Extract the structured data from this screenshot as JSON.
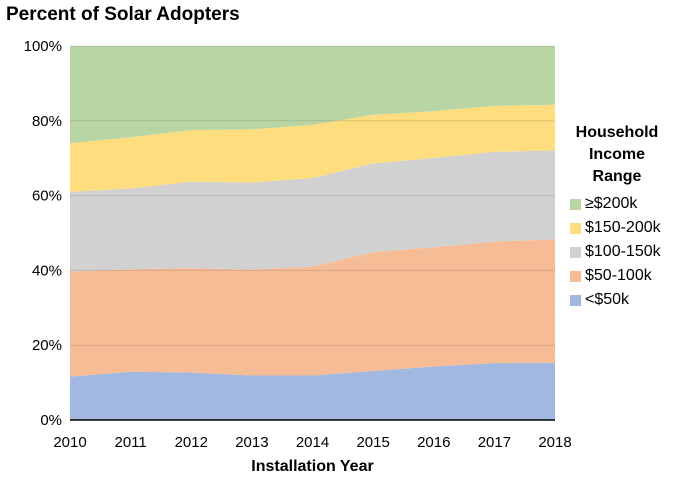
{
  "chart_data": {
    "type": "area",
    "stacked": true,
    "title": "Percent of Solar Adopters",
    "xlabel": "Installation Year",
    "ylabel": "",
    "x": [
      2010,
      2011,
      2012,
      2013,
      2014,
      2015,
      2016,
      2017,
      2018
    ],
    "ylim": [
      0,
      100
    ],
    "yticks": [
      "0%",
      "20%",
      "40%",
      "60%",
      "80%",
      "100%"
    ],
    "ytick_values": [
      0,
      20,
      40,
      60,
      80,
      100
    ],
    "grid": true,
    "legend_title": [
      "Household",
      "Income",
      "Range"
    ],
    "legend_position": "right",
    "series": [
      {
        "name": "<$50k",
        "color": "#a2b8e0",
        "values": [
          11.6,
          12.9,
          12.7,
          11.9,
          11.9,
          13.1,
          14.3,
          15.2,
          15.3
        ]
      },
      {
        "name": "$50-100k",
        "color": "#f5bc96",
        "values": [
          28.1,
          27.4,
          27.9,
          28.3,
          29.1,
          31.8,
          31.9,
          32.5,
          33.0
        ]
      },
      {
        "name": "$100-150k",
        "color": "#d1d1d1",
        "values": [
          21.3,
          21.6,
          23.1,
          23.3,
          23.7,
          23.7,
          23.9,
          24.0,
          23.8
        ]
      },
      {
        "name": "$150-200k",
        "color": "#fedd7e",
        "values": [
          13.0,
          13.7,
          13.8,
          14.2,
          14.2,
          13.0,
          12.5,
          12.3,
          12.2
        ]
      },
      {
        "name": "≥$200k",
        "color": "#b9d5a3",
        "values": [
          26.0,
          24.4,
          22.5,
          22.3,
          21.1,
          18.4,
          17.4,
          16.0,
          15.7
        ]
      }
    ]
  }
}
